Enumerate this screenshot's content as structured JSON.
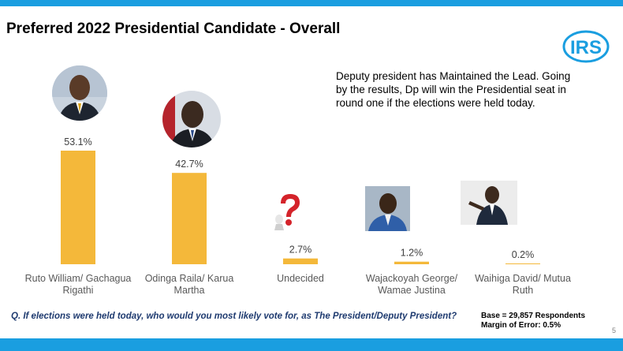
{
  "title": "Preferred 2022  Presidential  Candidate - Overall",
  "logo": {
    "text": "IRS",
    "icon": "irs-logo-icon",
    "color": "#1a9ee0"
  },
  "note": "Deputy president has Maintained the Lead. Going by the results, Dp will win the Presidential seat in round one if the elections were held today.",
  "question": "Q. If elections were held today, who would you most likely vote for, as The President/Deputy President?",
  "base_line1": "Base = 29,857 Respondents",
  "base_line2": "Margin of Error: 0.5%",
  "page_number": "5",
  "colors": {
    "bar": "#f4b83a",
    "band": "#1a9ee0",
    "question": "#1f3b70"
  },
  "chart_data": {
    "type": "bar",
    "categories": [
      [
        "Ruto William/ Gachagua",
        "Rigathi"
      ],
      [
        "Odinga Raila/ Karua",
        "Martha"
      ],
      [
        "Undecided"
      ],
      [
        "Wajackoyah George/",
        "Wamae Justina"
      ],
      [
        "Waihiga David/ Mutua",
        "Ruth"
      ]
    ],
    "values": [
      53.1,
      42.7,
      2.7,
      1.2,
      0.2
    ],
    "data_labels": [
      "53.1%",
      "42.7%",
      "2.7%",
      "1.2%",
      "0.2%"
    ],
    "title": "Preferred 2022  Presidential  Candidate - Overall",
    "ylim": [
      0,
      53.1
    ],
    "grid": false,
    "legend": "none"
  }
}
